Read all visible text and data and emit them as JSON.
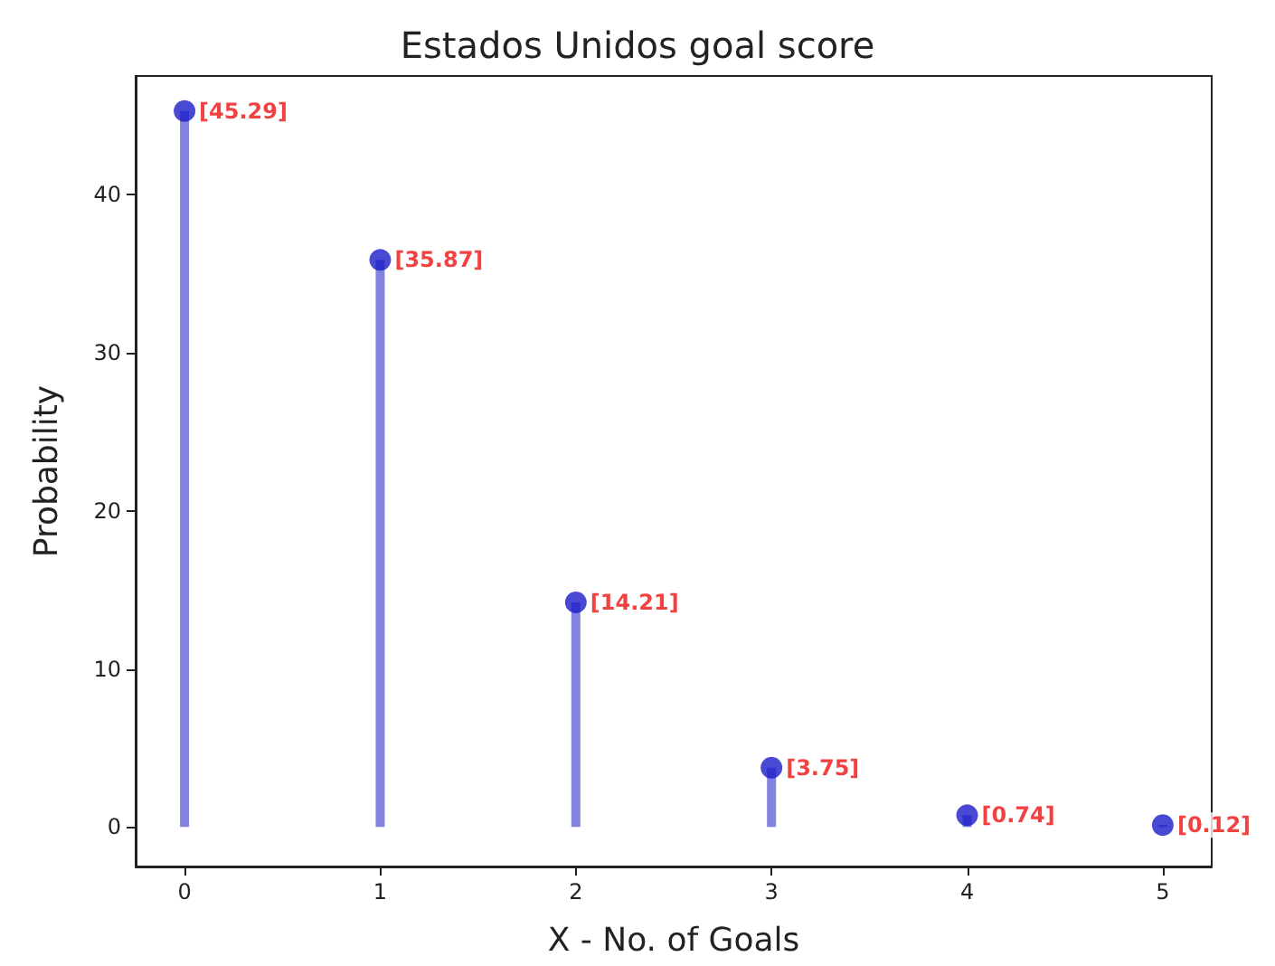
{
  "chart_data": {
    "type": "lollipop",
    "title": "Estados Unidos goal score",
    "xlabel": "X - No. of Goals",
    "ylabel": "Probability",
    "x": [
      0,
      1,
      2,
      3,
      4,
      5
    ],
    "values": [
      45.29,
      35.87,
      14.21,
      3.75,
      0.74,
      0.12
    ],
    "value_labels": [
      "[45.29]",
      "[35.87]",
      "[14.21]",
      "[3.75]",
      "[0.74]",
      "[0.12]"
    ],
    "color": "#1c1cc8",
    "xlim": [
      -0.25,
      5.25
    ],
    "xticks": [
      0,
      1,
      2,
      3,
      4,
      5
    ],
    "ylim": [
      -2.5,
      47.5
    ],
    "yticks": [
      0,
      10,
      20,
      30,
      40
    ],
    "legend": false,
    "marker": "circle"
  }
}
